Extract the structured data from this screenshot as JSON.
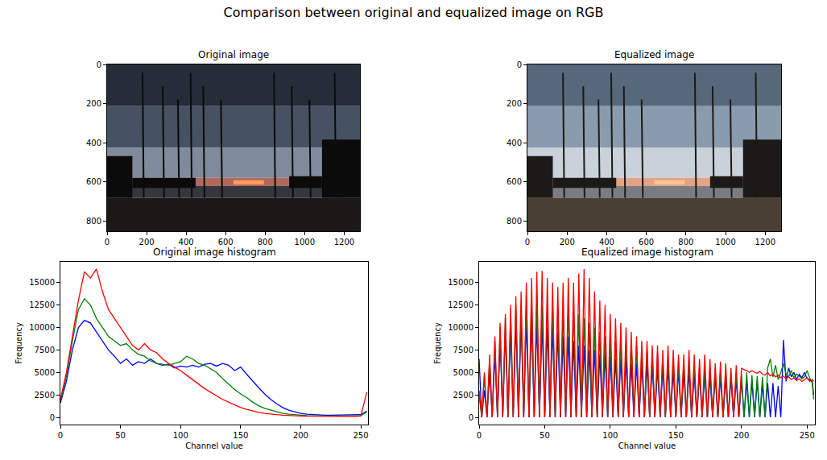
{
  "title": "Comparison between original and equalized image on RGB",
  "chart_data": [
    {
      "type": "image",
      "title": "Original image",
      "variant": "original",
      "xlim": [
        0,
        1280
      ],
      "ylim": [
        853,
        0
      ],
      "xticks": [
        0,
        200,
        400,
        600,
        800,
        1000,
        1200
      ],
      "yticks": [
        0,
        200,
        400,
        600,
        800
      ],
      "grid": false
    },
    {
      "type": "image",
      "title": "Equalized image",
      "variant": "equalized",
      "xlim": [
        0,
        1280
      ],
      "ylim": [
        853,
        0
      ],
      "xticks": [
        0,
        200,
        400,
        600,
        800,
        1000,
        1200
      ],
      "yticks": [
        0,
        200,
        400,
        600,
        800
      ],
      "grid": false
    },
    {
      "type": "line",
      "title": "Original image histogram",
      "x_label": "Channel value",
      "y_label": "Frequency",
      "xlim": [
        0,
        256
      ],
      "ylim": [
        -800,
        17300
      ],
      "xticks": [
        0,
        50,
        100,
        150,
        200,
        250
      ],
      "yticks": [
        0,
        2500,
        5000,
        7500,
        10000,
        12500,
        15000
      ],
      "grid": false,
      "x": [
        0,
        5,
        10,
        15,
        20,
        25,
        30,
        35,
        40,
        45,
        50,
        55,
        60,
        65,
        70,
        75,
        80,
        85,
        90,
        95,
        100,
        105,
        110,
        115,
        120,
        125,
        130,
        135,
        140,
        145,
        150,
        155,
        160,
        165,
        170,
        175,
        180,
        185,
        190,
        195,
        200,
        205,
        210,
        215,
        220,
        225,
        230,
        235,
        240,
        245,
        250,
        255
      ],
      "series": [
        {
          "color": "blue",
          "values": [
            1600,
            4000,
            7500,
            10000,
            10800,
            10500,
            9500,
            8500,
            7500,
            6800,
            6000,
            6500,
            5800,
            6200,
            6000,
            6500,
            6000,
            5800,
            5900,
            5500,
            5700,
            5600,
            5800,
            5600,
            5900,
            6000,
            5700,
            6000,
            5800,
            5200,
            5600,
            4800,
            4000,
            3300,
            2600,
            2000,
            1500,
            1100,
            800,
            600,
            450,
            350,
            300,
            250,
            250,
            250,
            250,
            250,
            250,
            250,
            300,
            700
          ]
        },
        {
          "color": "green",
          "values": [
            1800,
            4500,
            8500,
            12000,
            13200,
            12500,
            11000,
            10000,
            9000,
            8500,
            8000,
            8200,
            7500,
            7000,
            6800,
            6300,
            6000,
            5900,
            5800,
            6000,
            6200,
            6800,
            6500,
            6000,
            5800,
            5400,
            5000,
            4300,
            3700,
            3100,
            2600,
            2200,
            1700,
            1300,
            1000,
            800,
            600,
            450,
            350,
            280,
            230,
            200,
            180,
            160,
            150,
            150,
            150,
            150,
            150,
            150,
            200,
            600
          ]
        },
        {
          "color": "red",
          "values": [
            2000,
            5000,
            9000,
            13000,
            16200,
            15500,
            16500,
            14000,
            12000,
            11000,
            10000,
            9000,
            8000,
            7500,
            8200,
            7500,
            7200,
            6500,
            6000,
            5600,
            5200,
            4700,
            4200,
            3700,
            3200,
            2800,
            2400,
            2000,
            1700,
            1400,
            1100,
            900,
            700,
            550,
            450,
            350,
            300,
            250,
            200,
            180,
            150,
            130,
            120,
            110,
            100,
            100,
            100,
            100,
            100,
            100,
            150,
            2800
          ]
        }
      ]
    },
    {
      "type": "line",
      "title": "Equalized image histogram",
      "x_label": "Channel value",
      "y_label": "Frequency",
      "xlim": [
        0,
        256
      ],
      "ylim": [
        -800,
        17300
      ],
      "xticks": [
        0,
        50,
        100,
        150,
        200,
        250
      ],
      "yticks": [
        0,
        2500,
        5000,
        7500,
        10000,
        12500,
        15000
      ],
      "grid": false,
      "x": [
        0,
        2,
        4,
        6,
        8,
        10,
        12,
        14,
        16,
        18,
        20,
        22,
        24,
        26,
        28,
        30,
        32,
        34,
        36,
        38,
        40,
        42,
        44,
        46,
        48,
        50,
        52,
        54,
        56,
        58,
        60,
        62,
        64,
        66,
        68,
        70,
        72,
        74,
        76,
        78,
        80,
        82,
        84,
        86,
        88,
        90,
        92,
        94,
        96,
        98,
        100,
        102,
        104,
        106,
        108,
        110,
        112,
        114,
        116,
        118,
        120,
        122,
        124,
        126,
        128,
        130,
        132,
        134,
        136,
        138,
        140,
        142,
        144,
        146,
        148,
        150,
        152,
        154,
        156,
        158,
        160,
        162,
        164,
        166,
        168,
        170,
        172,
        174,
        176,
        178,
        180,
        182,
        184,
        186,
        188,
        190,
        192,
        194,
        196,
        198,
        200,
        202,
        204,
        206,
        208,
        210,
        212,
        214,
        216,
        218,
        220,
        222,
        224,
        226,
        228,
        230,
        232,
        234,
        236,
        238,
        240,
        242,
        244,
        246,
        248,
        250,
        252,
        254,
        255
      ],
      "series": [
        {
          "color": "blue",
          "values": [
            6500,
            0,
            3000,
            0,
            5000,
            0,
            7000,
            0,
            8500,
            0,
            9500,
            0,
            10000,
            0,
            10500,
            0,
            10800,
            0,
            10800,
            0,
            10800,
            0,
            10500,
            0,
            10500,
            0,
            10000,
            0,
            10000,
            0,
            9500,
            0,
            9000,
            0,
            9000,
            0,
            8500,
            0,
            8000,
            0,
            8000,
            0,
            7500,
            0,
            7500,
            0,
            7000,
            0,
            7000,
            0,
            6800,
            0,
            6500,
            0,
            6500,
            0,
            6200,
            0,
            6000,
            0,
            6000,
            0,
            6000,
            0,
            5800,
            0,
            5800,
            0,
            5500,
            0,
            5500,
            0,
            5500,
            0,
            5200,
            0,
            5200,
            0,
            5000,
            0,
            5000,
            0,
            4800,
            0,
            4800,
            0,
            4800,
            0,
            4500,
            0,
            4500,
            0,
            4500,
            0,
            4300,
            0,
            4300,
            0,
            4200,
            0,
            4200,
            0,
            4000,
            0,
            4000,
            0,
            4000,
            0,
            3800,
            0,
            3800,
            0,
            3800,
            0,
            3500,
            0,
            8600,
            4000,
            5500,
            4500,
            5000,
            4200,
            4800,
            4400,
            5000,
            4300,
            4200,
            4000,
            2500
          ]
        },
        {
          "color": "green",
          "values": [
            2500,
            0,
            4500,
            0,
            6500,
            0,
            8500,
            0,
            10000,
            0,
            11000,
            0,
            11500,
            0,
            12500,
            0,
            12500,
            0,
            13000,
            0,
            13000,
            0,
            12800,
            0,
            12500,
            0,
            12800,
            0,
            13000,
            0,
            12500,
            0,
            12000,
            0,
            12500,
            0,
            12000,
            0,
            11500,
            0,
            11000,
            0,
            10500,
            0,
            10000,
            0,
            9500,
            0,
            9000,
            0,
            9000,
            0,
            8500,
            0,
            8500,
            0,
            8000,
            0,
            8500,
            0,
            8000,
            0,
            7500,
            0,
            7500,
            0,
            7000,
            0,
            7000,
            0,
            6800,
            0,
            6500,
            0,
            6500,
            0,
            6200,
            0,
            6000,
            0,
            6000,
            0,
            5800,
            0,
            5800,
            0,
            5500,
            0,
            5500,
            0,
            5300,
            0,
            5200,
            0,
            5000,
            0,
            5000,
            0,
            4800,
            0,
            4800,
            0,
            5000,
            0,
            4700,
            0,
            4600,
            0,
            4500,
            0,
            5500,
            6500,
            4500,
            5800,
            4200,
            5000,
            6000,
            4800,
            4500,
            5200,
            4400,
            4800,
            4600,
            4300,
            4500,
            5200,
            4400,
            3800,
            2000
          ]
        },
        {
          "color": "red",
          "values": [
            3000,
            0,
            5000,
            0,
            7000,
            0,
            9000,
            0,
            10500,
            0,
            11500,
            0,
            12500,
            0,
            13500,
            0,
            14000,
            0,
            15000,
            0,
            15500,
            0,
            16200,
            0,
            16300,
            0,
            15500,
            0,
            15000,
            0,
            14500,
            0,
            15000,
            0,
            15500,
            0,
            15000,
            0,
            16000,
            0,
            16500,
            0,
            15500,
            0,
            14000,
            0,
            13000,
            0,
            12500,
            0,
            11500,
            0,
            11000,
            0,
            10500,
            0,
            10000,
            0,
            9500,
            0,
            9000,
            0,
            8500,
            0,
            8500,
            0,
            8000,
            0,
            8000,
            0,
            7500,
            0,
            8000,
            0,
            7500,
            0,
            7000,
            0,
            7000,
            0,
            7500,
            0,
            7000,
            0,
            6500,
            0,
            7000,
            0,
            6500,
            0,
            6000,
            0,
            6200,
            0,
            6000,
            0,
            5500,
            0,
            5800,
            0,
            5500,
            5300,
            5200,
            5000,
            5200,
            5000,
            4900,
            5100,
            4800,
            4700,
            5000,
            4600,
            4800,
            4500,
            4700,
            4400,
            4600,
            4300,
            4500,
            4200,
            4400,
            4100,
            4300,
            4000,
            4200,
            4400,
            4000,
            4200,
            4000
          ]
        }
      ]
    }
  ]
}
